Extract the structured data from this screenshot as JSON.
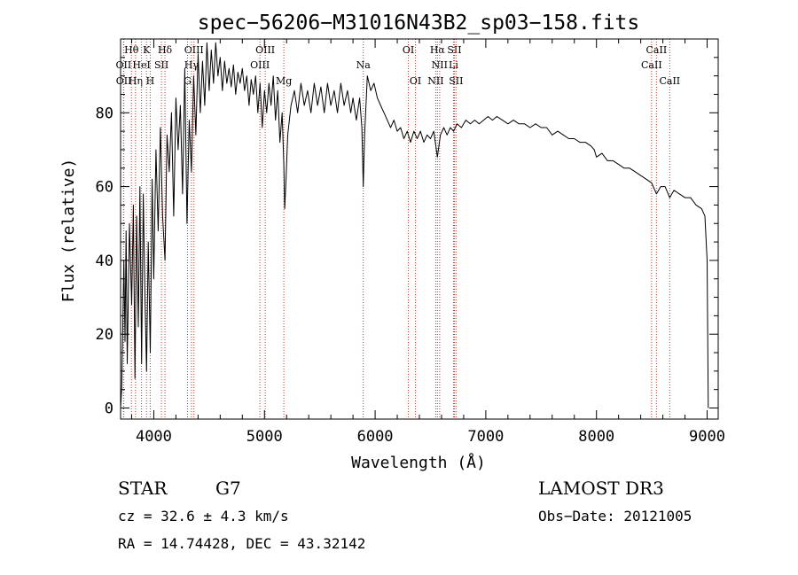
{
  "chart_data": {
    "type": "line",
    "title": "spec−56206−M31016N43B2_sp03−158.fits",
    "xlabel": "Wavelength (Å)",
    "ylabel": "Flux (relative)",
    "xlim": [
      3700,
      9100
    ],
    "ylim": [
      -3,
      100
    ],
    "xticks": [
      4000,
      5000,
      6000,
      7000,
      8000,
      9000
    ],
    "yticks": [
      0,
      20,
      40,
      60,
      80
    ],
    "x_minor_step": 200,
    "y_minor_step": 5,
    "series": [
      {
        "name": "spectrum",
        "color": "#000000",
        "points": [
          [
            3700,
            0
          ],
          [
            3710,
            5
          ],
          [
            3720,
            22
          ],
          [
            3730,
            40
          ],
          [
            3740,
            18
          ],
          [
            3750,
            48
          ],
          [
            3760,
            12
          ],
          [
            3780,
            50
          ],
          [
            3800,
            28
          ],
          [
            3815,
            55
          ],
          [
            3830,
            8
          ],
          [
            3845,
            52
          ],
          [
            3860,
            22
          ],
          [
            3875,
            60
          ],
          [
            3890,
            12
          ],
          [
            3905,
            58
          ],
          [
            3920,
            30
          ],
          [
            3935,
            10
          ],
          [
            3950,
            45
          ],
          [
            3968,
            15
          ],
          [
            3985,
            62
          ],
          [
            4000,
            35
          ],
          [
            4020,
            70
          ],
          [
            4040,
            48
          ],
          [
            4060,
            76
          ],
          [
            4080,
            52
          ],
          [
            4101,
            40
          ],
          [
            4120,
            74
          ],
          [
            4140,
            64
          ],
          [
            4160,
            80
          ],
          [
            4180,
            52
          ],
          [
            4200,
            84
          ],
          [
            4220,
            70
          ],
          [
            4240,
            82
          ],
          [
            4260,
            58
          ],
          [
            4280,
            92
          ],
          [
            4300,
            50
          ],
          [
            4320,
            78
          ],
          [
            4340,
            64
          ],
          [
            4360,
            90
          ],
          [
            4380,
            74
          ],
          [
            4400,
            96
          ],
          [
            4420,
            80
          ],
          [
            4440,
            94
          ],
          [
            4460,
            82
          ],
          [
            4480,
            99
          ],
          [
            4500,
            86
          ],
          [
            4520,
            97
          ],
          [
            4540,
            88
          ],
          [
            4560,
            99
          ],
          [
            4580,
            90
          ],
          [
            4600,
            95
          ],
          [
            4620,
            86
          ],
          [
            4640,
            94
          ],
          [
            4660,
            88
          ],
          [
            4680,
            92
          ],
          [
            4700,
            87
          ],
          [
            4720,
            93
          ],
          [
            4740,
            85
          ],
          [
            4760,
            91
          ],
          [
            4780,
            88
          ],
          [
            4800,
            92
          ],
          [
            4820,
            86
          ],
          [
            4840,
            90
          ],
          [
            4861,
            82
          ],
          [
            4880,
            89
          ],
          [
            4900,
            85
          ],
          [
            4920,
            90
          ],
          [
            4940,
            80
          ],
          [
            4960,
            88
          ],
          [
            4980,
            76
          ],
          [
            5000,
            86
          ],
          [
            5020,
            80
          ],
          [
            5040,
            88
          ],
          [
            5060,
            82
          ],
          [
            5080,
            90
          ],
          [
            5100,
            78
          ],
          [
            5120,
            86
          ],
          [
            5140,
            72
          ],
          [
            5160,
            80
          ],
          [
            5175,
            66
          ],
          [
            5183,
            54
          ],
          [
            5195,
            62
          ],
          [
            5210,
            74
          ],
          [
            5240,
            82
          ],
          [
            5270,
            86
          ],
          [
            5300,
            80
          ],
          [
            5330,
            88
          ],
          [
            5360,
            82
          ],
          [
            5390,
            86
          ],
          [
            5420,
            80
          ],
          [
            5450,
            88
          ],
          [
            5480,
            82
          ],
          [
            5510,
            87
          ],
          [
            5540,
            80
          ],
          [
            5570,
            88
          ],
          [
            5600,
            82
          ],
          [
            5630,
            86
          ],
          [
            5660,
            80
          ],
          [
            5690,
            88
          ],
          [
            5720,
            82
          ],
          [
            5750,
            86
          ],
          [
            5780,
            80
          ],
          [
            5800,
            84
          ],
          [
            5830,
            78
          ],
          [
            5860,
            84
          ],
          [
            5880,
            76
          ],
          [
            5893,
            60
          ],
          [
            5905,
            74
          ],
          [
            5930,
            90
          ],
          [
            5960,
            86
          ],
          [
            5990,
            88
          ],
          [
            6020,
            84
          ],
          [
            6050,
            82
          ],
          [
            6080,
            80
          ],
          [
            6110,
            78
          ],
          [
            6140,
            76
          ],
          [
            6170,
            78
          ],
          [
            6200,
            75
          ],
          [
            6230,
            76
          ],
          [
            6260,
            73
          ],
          [
            6290,
            75
          ],
          [
            6320,
            72
          ],
          [
            6350,
            75
          ],
          [
            6380,
            73
          ],
          [
            6410,
            75
          ],
          [
            6440,
            72
          ],
          [
            6470,
            74
          ],
          [
            6500,
            73
          ],
          [
            6530,
            75
          ],
          [
            6563,
            68
          ],
          [
            6590,
            74
          ],
          [
            6620,
            76
          ],
          [
            6650,
            74
          ],
          [
            6680,
            76
          ],
          [
            6710,
            75
          ],
          [
            6740,
            77
          ],
          [
            6780,
            76
          ],
          [
            6820,
            78
          ],
          [
            6860,
            77
          ],
          [
            6900,
            78
          ],
          [
            6940,
            77
          ],
          [
            6980,
            78
          ],
          [
            7020,
            79
          ],
          [
            7060,
            78
          ],
          [
            7100,
            79
          ],
          [
            7150,
            78
          ],
          [
            7200,
            77
          ],
          [
            7250,
            78
          ],
          [
            7300,
            77
          ],
          [
            7350,
            77
          ],
          [
            7400,
            76
          ],
          [
            7450,
            77
          ],
          [
            7500,
            76
          ],
          [
            7550,
            76
          ],
          [
            7600,
            74
          ],
          [
            7650,
            75
          ],
          [
            7700,
            74
          ],
          [
            7750,
            73
          ],
          [
            7800,
            73
          ],
          [
            7850,
            72
          ],
          [
            7900,
            72
          ],
          [
            7950,
            71
          ],
          [
            7980,
            70
          ],
          [
            8000,
            68
          ],
          [
            8050,
            69
          ],
          [
            8100,
            67
          ],
          [
            8150,
            67
          ],
          [
            8200,
            66
          ],
          [
            8250,
            65
          ],
          [
            8300,
            65
          ],
          [
            8350,
            64
          ],
          [
            8400,
            63
          ],
          [
            8450,
            62
          ],
          [
            8498,
            61
          ],
          [
            8542,
            58
          ],
          [
            8580,
            60
          ],
          [
            8620,
            60
          ],
          [
            8662,
            57
          ],
          [
            8700,
            59
          ],
          [
            8750,
            58
          ],
          [
            8800,
            57
          ],
          [
            8850,
            57
          ],
          [
            8900,
            55
          ],
          [
            8950,
            54
          ],
          [
            8980,
            52
          ],
          [
            9000,
            40
          ],
          [
            9010,
            0
          ]
        ]
      }
    ],
    "spectral_lines": [
      {
        "label": "Hθ",
        "wavelength": 3798,
        "row": 1
      },
      {
        "label": "OII",
        "wavelength": 3727,
        "row": 2
      },
      {
        "label": "OII",
        "wavelength": 3729,
        "row": 3
      },
      {
        "label": "Hη",
        "wavelength": 3835,
        "row": 3
      },
      {
        "label": "HeI",
        "wavelength": 3889,
        "row": 2
      },
      {
        "label": "K",
        "wavelength": 3934,
        "row": 1
      },
      {
        "label": "H",
        "wavelength": 3968,
        "row": 3
      },
      {
        "label": "SII",
        "wavelength": 4069,
        "row": 2
      },
      {
        "label": "Hδ",
        "wavelength": 4101,
        "row": 1
      },
      {
        "label": "OIII",
        "wavelength": 4363,
        "row": 1
      },
      {
        "label": "Hγ",
        "wavelength": 4340,
        "row": 2
      },
      {
        "label": "G",
        "wavelength": 4305,
        "row": 3
      },
      {
        "label": "OIII",
        "wavelength": 4959,
        "row": 2
      },
      {
        "label": "OIII",
        "wavelength": 5007,
        "row": 1
      },
      {
        "label": "Mg",
        "wavelength": 5175,
        "row": 3
      },
      {
        "label": "Na",
        "wavelength": 5893,
        "row": 2
      },
      {
        "label": "OI",
        "wavelength": 6300,
        "row": 1
      },
      {
        "label": "OI",
        "wavelength": 6364,
        "row": 3
      },
      {
        "label": "Hα",
        "wavelength": 6563,
        "row": 1
      },
      {
        "label": "NII",
        "wavelength": 6583,
        "row": 2
      },
      {
        "label": "NII",
        "wavelength": 6548,
        "row": 3
      },
      {
        "label": "SII",
        "wavelength": 6716,
        "row": 1
      },
      {
        "label": "Li",
        "wavelength": 6708,
        "row": 2
      },
      {
        "label": "SII",
        "wavelength": 6731,
        "row": 3
      },
      {
        "label": "CaII",
        "wavelength": 8542,
        "row": 1
      },
      {
        "label": "CaII",
        "wavelength": 8498,
        "row": 2
      },
      {
        "label": "CaII",
        "wavelength": 8662,
        "row": 3
      }
    ]
  },
  "info": {
    "class": "STAR",
    "subclass": "G7",
    "survey": "LAMOST DR3",
    "redshift": "cz = 32.6 ± 4.3 km/s",
    "obs_date": "Obs−Date: 20121005",
    "coords": "RA =  14.74428, DEC =  43.32142"
  }
}
